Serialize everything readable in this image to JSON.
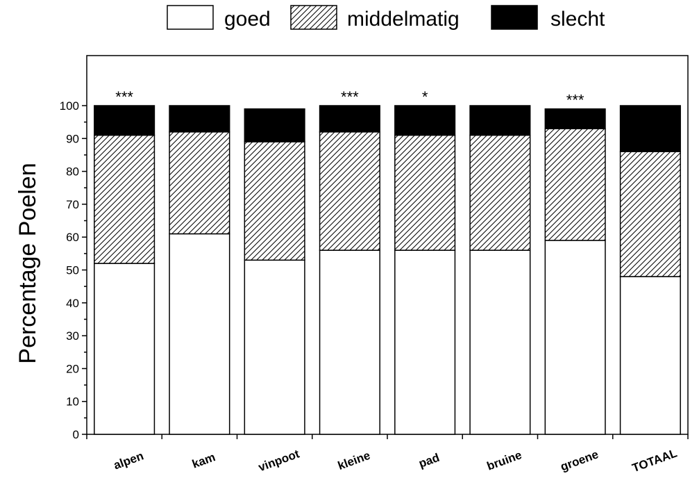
{
  "chart_data": {
    "type": "bar",
    "stacked": true,
    "categories": [
      "alpen",
      "kam",
      "vinpoot",
      "kleine",
      "pad",
      "bruine",
      "groene",
      "TOTAAL"
    ],
    "series": [
      {
        "name": "goed",
        "values": [
          52,
          61,
          53,
          56,
          56,
          56,
          59,
          48
        ],
        "fill": "white"
      },
      {
        "name": "middelmatig",
        "values": [
          39,
          31,
          36,
          36,
          35,
          35,
          34,
          38
        ],
        "fill": "hatched"
      },
      {
        "name": "slecht",
        "values": [
          9,
          8,
          10,
          8,
          9,
          9,
          6,
          14
        ],
        "fill": "black"
      }
    ],
    "annotations": [
      "***",
      "",
      "",
      "***",
      "*",
      "",
      "***",
      ""
    ],
    "ylabel": "Percentage Poelen",
    "xlabel": "",
    "ylim": [
      0,
      100
    ],
    "yticks": [
      0,
      10,
      20,
      30,
      40,
      50,
      60,
      70,
      80,
      90,
      100
    ],
    "grid": false,
    "legend_position": "top"
  }
}
